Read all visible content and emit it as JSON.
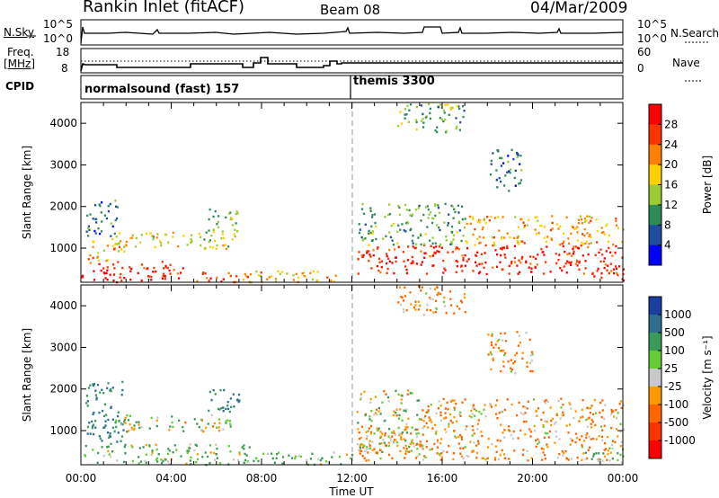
{
  "header": {
    "title": "Rankin Inlet (fitACF)",
    "beam": "Beam 08",
    "date": "04/Mar/2009"
  },
  "top_panels": {
    "nsky_label": "N.Sky",
    "nsky_ticks": [
      "10^5",
      "10^0"
    ],
    "nsearch_label": "N.Search",
    "nsearch_ticks": [
      "10^5",
      "10^0"
    ],
    "freq_label": "Freq.",
    "freq_unit": "[MHz]",
    "freq_ticks": [
      "18",
      "8"
    ],
    "nave_label": "Nave",
    "nave_ticks": [
      "60",
      "0"
    ],
    "cpid_label": "CPID",
    "cpid_modes": [
      "normalsound (fast) 157",
      "themis 3300"
    ]
  },
  "axis": {
    "ylabel": "Slant Range [km]",
    "xlabel": "Time UT",
    "y_ticks": [
      "1000",
      "2000",
      "3000",
      "4000"
    ],
    "x_ticks": [
      "00:00",
      "04:00",
      "08:00",
      "12:00",
      "16:00",
      "20:00",
      "00:00"
    ]
  },
  "colorbars": {
    "power": {
      "label": "Power [dB]",
      "ticks": [
        "28",
        "24",
        "20",
        "16",
        "12",
        "8",
        "4"
      ],
      "colors": [
        "#ff0000",
        "#ff3300",
        "#ff8000",
        "#ffd000",
        "#9acd32",
        "#2e8b57",
        "#1f4e9e",
        "#0000ff"
      ]
    },
    "velocity": {
      "label": "Velocity [m s⁻¹]",
      "ticks": [
        "1000",
        "500",
        "100",
        "25",
        "-25",
        "-100",
        "-500",
        "-1000"
      ],
      "colors": [
        "#1a3fa0",
        "#2e6e8e",
        "#3a9a5a",
        "#66cc33",
        "#c8c8c8",
        "#ff9900",
        "#ff6600",
        "#ff3300",
        "#ff0000"
      ]
    }
  },
  "chart_data": [
    {
      "type": "heatmap",
      "title": "Power [dB]",
      "xlabel": "Time UT",
      "ylabel": "Slant Range [km]",
      "xlim": [
        0,
        24
      ],
      "ylim": [
        180,
        4500
      ],
      "x_unit": "hours UT",
      "legend": "right colorbar",
      "regions": [
        {
          "t0": 0.0,
          "t1": 4.5,
          "r0": 200,
          "r1": 700,
          "level": 28
        },
        {
          "t0": 4.5,
          "t1": 7.5,
          "r0": 200,
          "r1": 450,
          "level": 24
        },
        {
          "t0": 0.3,
          "t1": 2.0,
          "r0": 700,
          "r1": 1300,
          "level": 20
        },
        {
          "t0": 0.2,
          "t1": 1.6,
          "r0": 1300,
          "r1": 2200,
          "level": 8
        },
        {
          "t0": 1.5,
          "t1": 6.8,
          "r0": 1000,
          "r1": 1400,
          "level": 16
        },
        {
          "t0": 5.5,
          "t1": 7.0,
          "r0": 1400,
          "r1": 2000,
          "level": 12
        },
        {
          "t0": 7.5,
          "t1": 11.5,
          "r0": 200,
          "r1": 500,
          "level": 20
        },
        {
          "t0": 12.2,
          "t1": 24.0,
          "r0": 400,
          "r1": 1100,
          "level": 28
        },
        {
          "t0": 12.2,
          "t1": 17.0,
          "r0": 1100,
          "r1": 2100,
          "level": 12
        },
        {
          "t0": 17.0,
          "t1": 24.0,
          "r0": 1100,
          "r1": 1800,
          "level": 20
        },
        {
          "t0": 22.5,
          "t1": 24.0,
          "r0": 200,
          "r1": 600,
          "level": 28
        },
        {
          "t0": 18.0,
          "t1": 19.5,
          "r0": 2400,
          "r1": 3400,
          "level": 8
        },
        {
          "t0": 14.0,
          "t1": 17.0,
          "r0": 3800,
          "r1": 4500,
          "level": 12
        }
      ]
    },
    {
      "type": "heatmap",
      "title": "Velocity [m s⁻¹]",
      "xlabel": "Time UT",
      "ylabel": "Slant Range [km]",
      "xlim": [
        0,
        24
      ],
      "ylim": [
        180,
        4500
      ],
      "x_unit": "hours UT",
      "legend": "right colorbar",
      "regions": [
        {
          "t0": 0.0,
          "t1": 7.5,
          "r0": 200,
          "r1": 700,
          "level": 100
        },
        {
          "t0": 0.2,
          "t1": 2.0,
          "r0": 700,
          "r1": 2200,
          "level": 500
        },
        {
          "t0": 1.5,
          "t1": 6.8,
          "r0": 1000,
          "r1": 1400,
          "level": 25
        },
        {
          "t0": 5.5,
          "t1": 7.0,
          "r0": 1400,
          "r1": 2000,
          "level": 500
        },
        {
          "t0": 7.5,
          "t1": 12.0,
          "r0": 200,
          "r1": 500,
          "level": 100
        },
        {
          "t0": 12.2,
          "t1": 15.0,
          "r0": 500,
          "r1": 2000,
          "level": 25
        },
        {
          "t0": 12.2,
          "t1": 24.0,
          "r0": 300,
          "r1": 1100,
          "level": -100
        },
        {
          "t0": 15.0,
          "t1": 24.0,
          "r0": 1100,
          "r1": 1800,
          "level": -100
        },
        {
          "t0": 18.0,
          "t1": 20.0,
          "r0": 2400,
          "r1": 3400,
          "level": -100
        },
        {
          "t0": 14.0,
          "t1": 17.0,
          "r0": 3800,
          "r1": 4500,
          "level": -100
        },
        {
          "t0": 22.0,
          "t1": 24.0,
          "r0": 200,
          "r1": 500,
          "level": 25
        }
      ]
    }
  ]
}
